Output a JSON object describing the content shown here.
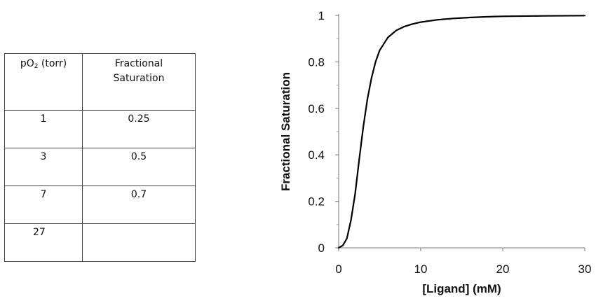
{
  "table": {
    "header": {
      "col1_prefix": "pO",
      "col1_sub": "2",
      "col1_suffix": " (torr)",
      "col2_line1": "Fractional",
      "col2_line2": "Saturation"
    },
    "rows": [
      {
        "po2": "1",
        "saturation": "0.25"
      },
      {
        "po2": "3",
        "saturation": "0.5"
      },
      {
        "po2": "7",
        "saturation": "0.7"
      },
      {
        "po2": "27",
        "saturation": ""
      }
    ]
  },
  "chart_data": {
    "type": "line",
    "xlabel": "[Ligand] (mM)",
    "ylabel": "Fractional Saturation",
    "xlim": [
      0,
      30
    ],
    "ylim": [
      0,
      1
    ],
    "x_ticks": [
      0,
      10,
      20,
      30
    ],
    "y_ticks": [
      0,
      0.2,
      0.4,
      0.6,
      0.8,
      1
    ],
    "y_tick_labels": [
      "0",
      "0.2",
      "0.4",
      "0.6",
      "0.8",
      "1"
    ],
    "x_tick_labels": [
      "0",
      "10",
      "20",
      "30"
    ],
    "y_minor_ticks": [
      0.1,
      0.3,
      0.5,
      0.7,
      0.9
    ],
    "grid": false,
    "line_color": "#000000",
    "series": [
      {
        "x": [
          0,
          0.5,
          1,
          1.5,
          2,
          2.5,
          3,
          3.5,
          4,
          4.5,
          5,
          6,
          7,
          8,
          9,
          10,
          12,
          14,
          16,
          18,
          20,
          25,
          30
        ],
        "y": [
          0,
          0.01,
          0.04,
          0.12,
          0.23,
          0.38,
          0.52,
          0.64,
          0.73,
          0.8,
          0.85,
          0.905,
          0.935,
          0.952,
          0.963,
          0.971,
          0.981,
          0.987,
          0.991,
          0.994,
          0.996,
          0.998,
          0.999
        ]
      }
    ]
  }
}
